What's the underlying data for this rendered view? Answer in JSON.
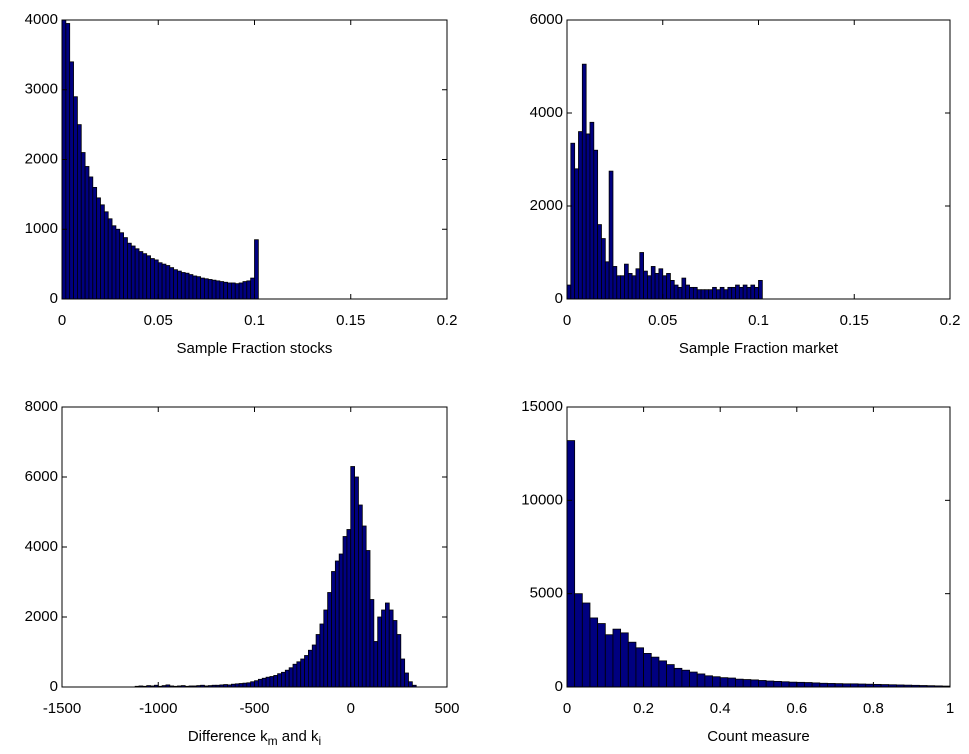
{
  "chart_data": [
    {
      "type": "histogram",
      "xlabel": [
        {
          "text": "Sample Fraction stocks",
          "subscript": false
        }
      ],
      "bins": [
        0,
        0.002,
        0.004,
        0.006,
        0.008,
        0.01,
        0.012,
        0.014,
        0.016,
        0.018,
        0.02,
        0.022,
        0.024,
        0.026,
        0.028,
        0.03,
        0.032,
        0.034,
        0.036,
        0.038,
        0.04,
        0.042,
        0.044,
        0.046,
        0.048,
        0.05,
        0.052,
        0.054,
        0.056,
        0.058,
        0.06,
        0.062,
        0.064,
        0.066,
        0.068,
        0.07,
        0.072,
        0.074,
        0.076,
        0.078,
        0.08,
        0.082,
        0.084,
        0.086,
        0.088,
        0.09,
        0.092,
        0.094,
        0.096,
        0.098,
        0.1,
        0.102
      ],
      "values": [
        4000,
        3950,
        3400,
        2900,
        2500,
        2100,
        1900,
        1750,
        1600,
        1450,
        1350,
        1250,
        1150,
        1050,
        1000,
        950,
        880,
        800,
        760,
        720,
        680,
        650,
        620,
        580,
        560,
        520,
        500,
        480,
        450,
        420,
        400,
        380,
        370,
        350,
        330,
        320,
        300,
        290,
        280,
        270,
        260,
        250,
        240,
        230,
        230,
        220,
        230,
        250,
        260,
        300,
        850
      ],
      "color": "#000080",
      "xlim": [
        0,
        0.2
      ],
      "ylim": [
        0,
        4000
      ],
      "xticks": [
        0,
        0.05,
        0.1,
        0.15,
        0.2
      ],
      "yticks": [
        0,
        1000,
        2000,
        3000,
        4000
      ]
    },
    {
      "type": "histogram",
      "xlabel": [
        {
          "text": "Sample Fraction market",
          "subscript": false
        }
      ],
      "bins": [
        0,
        0.002,
        0.004,
        0.006,
        0.008,
        0.01,
        0.012,
        0.014,
        0.016,
        0.018,
        0.02,
        0.022,
        0.024,
        0.026,
        0.028,
        0.03,
        0.032,
        0.034,
        0.036,
        0.038,
        0.04,
        0.042,
        0.044,
        0.046,
        0.048,
        0.05,
        0.052,
        0.054,
        0.056,
        0.058,
        0.06,
        0.062,
        0.064,
        0.066,
        0.068,
        0.07,
        0.072,
        0.074,
        0.076,
        0.078,
        0.08,
        0.082,
        0.084,
        0.086,
        0.088,
        0.09,
        0.092,
        0.094,
        0.096,
        0.098,
        0.1,
        0.102
      ],
      "values": [
        300,
        3350,
        2800,
        3600,
        5050,
        3550,
        3800,
        3200,
        1600,
        1300,
        800,
        2750,
        700,
        500,
        500,
        750,
        550,
        500,
        650,
        1000,
        600,
        500,
        700,
        550,
        650,
        500,
        550,
        400,
        300,
        250,
        450,
        300,
        250,
        250,
        200,
        200,
        200,
        200,
        250,
        200,
        250,
        200,
        250,
        250,
        300,
        250,
        300,
        250,
        300,
        250,
        400
      ],
      "color": "#000080",
      "xlim": [
        0,
        0.2
      ],
      "ylim": [
        0,
        6000
      ],
      "xticks": [
        0,
        0.05,
        0.1,
        0.15,
        0.2
      ],
      "yticks": [
        0,
        2000,
        4000,
        6000
      ]
    },
    {
      "type": "histogram",
      "xlabel": [
        {
          "text": "Difference k",
          "subscript": false
        },
        {
          "text": "m",
          "subscript": true
        },
        {
          "text": " and k",
          "subscript": false
        },
        {
          "text": "i",
          "subscript": true
        }
      ],
      "bins": [
        -1120,
        -1100,
        -1080,
        -1060,
        -1040,
        -1020,
        -1000,
        -980,
        -960,
        -940,
        -920,
        -900,
        -880,
        -860,
        -840,
        -820,
        -800,
        -780,
        -760,
        -740,
        -720,
        -700,
        -680,
        -660,
        -640,
        -620,
        -600,
        -580,
        -560,
        -540,
        -520,
        -500,
        -480,
        -460,
        -440,
        -420,
        -400,
        -380,
        -360,
        -340,
        -320,
        -300,
        -280,
        -260,
        -240,
        -220,
        -200,
        -180,
        -160,
        -140,
        -120,
        -100,
        -80,
        -60,
        -40,
        -20,
        0,
        20,
        40,
        60,
        80,
        100,
        120,
        140,
        160,
        180,
        200,
        220,
        240,
        260,
        280,
        300,
        320,
        340
      ],
      "values": [
        20,
        30,
        20,
        40,
        30,
        50,
        20,
        40,
        60,
        30,
        20,
        30,
        40,
        20,
        30,
        30,
        40,
        50,
        30,
        40,
        50,
        50,
        60,
        70,
        60,
        80,
        90,
        100,
        110,
        120,
        150,
        180,
        220,
        250,
        280,
        300,
        330,
        380,
        420,
        480,
        550,
        650,
        720,
        800,
        900,
        1050,
        1200,
        1500,
        1800,
        2200,
        2700,
        3300,
        3600,
        3800,
        4300,
        4500,
        6300,
        6000,
        5200,
        4600,
        3900,
        2500,
        1300,
        2000,
        2200,
        2400,
        2200,
        1900,
        1500,
        800,
        400,
        150,
        50
      ],
      "color": "#000080",
      "xlim": [
        -1500,
        500
      ],
      "ylim": [
        0,
        8000
      ],
      "xticks": [
        -1500,
        -1000,
        -500,
        0,
        500
      ],
      "yticks": [
        0,
        2000,
        4000,
        6000,
        8000
      ]
    },
    {
      "type": "histogram",
      "xlabel": [
        {
          "text": "Count measure",
          "subscript": false
        }
      ],
      "bins": [
        0,
        0.02,
        0.04,
        0.06,
        0.08,
        0.1,
        0.12,
        0.14,
        0.16,
        0.18,
        0.2,
        0.22,
        0.24,
        0.26,
        0.28,
        0.3,
        0.32,
        0.34,
        0.36,
        0.38,
        0.4,
        0.42,
        0.44,
        0.46,
        0.48,
        0.5,
        0.52,
        0.54,
        0.56,
        0.58,
        0.6,
        0.62,
        0.64,
        0.66,
        0.68,
        0.7,
        0.72,
        0.74,
        0.76,
        0.78,
        0.8,
        0.82,
        0.84,
        0.86,
        0.88,
        0.9,
        0.92,
        0.94,
        0.96,
        0.98,
        1
      ],
      "values": [
        13200,
        5000,
        4500,
        3700,
        3400,
        2800,
        3100,
        2900,
        2400,
        2100,
        1800,
        1600,
        1400,
        1200,
        1000,
        900,
        800,
        700,
        600,
        550,
        500,
        480,
        420,
        400,
        380,
        350,
        320,
        300,
        280,
        260,
        250,
        240,
        220,
        200,
        190,
        180,
        170,
        170,
        160,
        150,
        140,
        130,
        120,
        110,
        100,
        90,
        80,
        70,
        60,
        50
      ],
      "color": "#000080",
      "xlim": [
        0,
        1
      ],
      "ylim": [
        0,
        15000
      ],
      "xticks": [
        0,
        0.2,
        0.4,
        0.6,
        0.8,
        1
      ],
      "yticks": [
        0,
        5000,
        10000,
        15000
      ]
    }
  ]
}
